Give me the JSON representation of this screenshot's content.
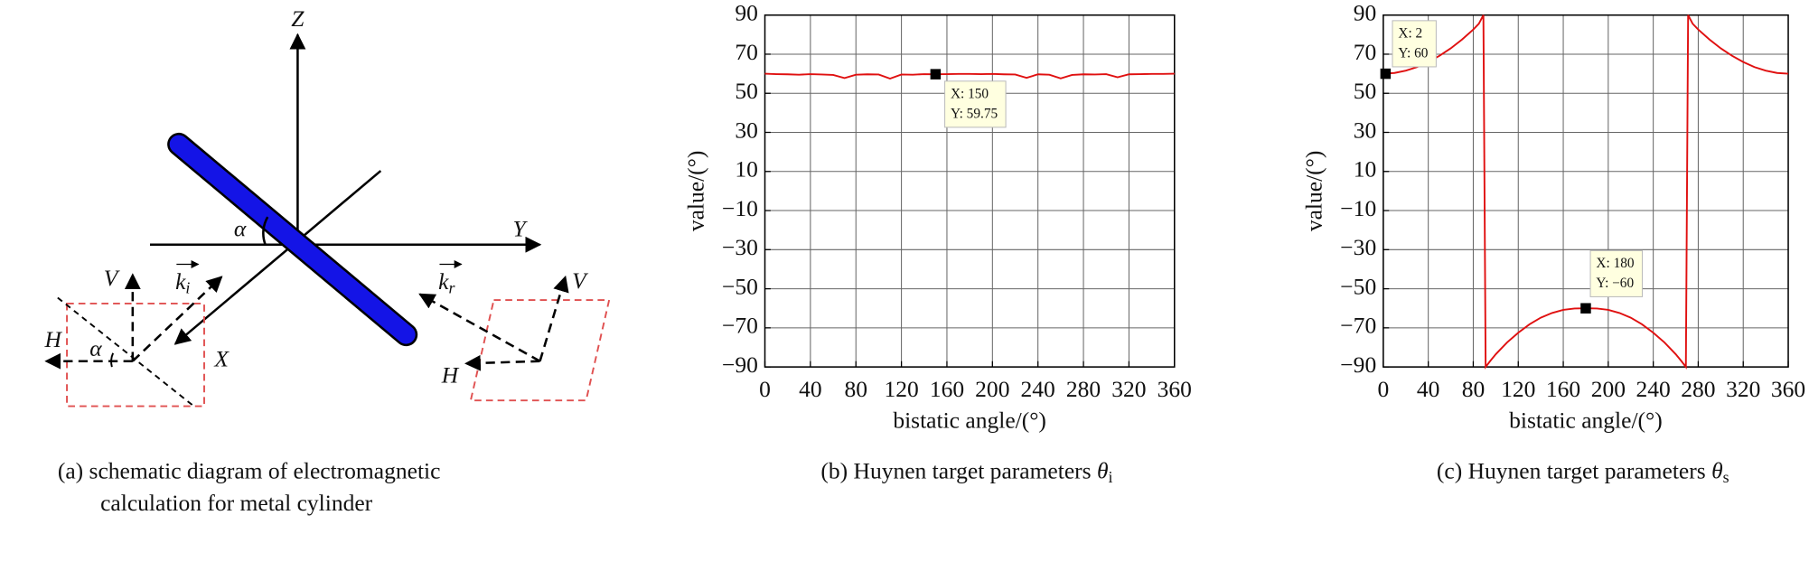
{
  "diagram": {
    "axis_z": "Z",
    "axis_y": "Y",
    "axis_x": "X",
    "alpha_center": "α",
    "incident": {
      "v": "V",
      "h": "H",
      "alpha": "α",
      "k": "k",
      "k_sub": "i"
    },
    "reflected": {
      "v": "V",
      "h": "H",
      "k": "k",
      "k_sub": "r"
    },
    "caption": [
      "(a) schematic diagram of electromagnetic",
      "calculation for metal cylinder"
    ]
  },
  "chart_data": [
    {
      "type": "line",
      "caption": {
        "text": "(b) Huynen target parameters ",
        "symbol": "θ",
        "subscript": "i"
      },
      "xlabel": "bistatic angle/(°)",
      "ylabel": "value/(°)",
      "x": [
        0,
        10,
        20,
        30,
        40,
        50,
        60,
        70,
        80,
        90,
        100,
        110,
        120,
        130,
        140,
        150,
        160,
        170,
        180,
        190,
        200,
        210,
        220,
        230,
        240,
        250,
        260,
        270,
        280,
        290,
        300,
        310,
        320,
        330,
        340,
        350,
        360
      ],
      "series": [
        {
          "color": "#e01010",
          "values": [
            60,
            59.8,
            59.7,
            59.5,
            59.8,
            59.6,
            59.4,
            57.8,
            59.5,
            59.7,
            59.6,
            57.5,
            59.6,
            59.5,
            59.8,
            59.75,
            59.8,
            59.9,
            59.9,
            59.8,
            59.9,
            59.7,
            59.6,
            57.9,
            59.7,
            59.5,
            57.6,
            59.4,
            59.7,
            59.6,
            59.8,
            58.2,
            59.7,
            59.8,
            59.9,
            59.9,
            60
          ]
        }
      ],
      "xlim": [
        0,
        360
      ],
      "xticks": [
        0,
        40,
        80,
        120,
        160,
        200,
        240,
        280,
        320,
        360
      ],
      "ylim": [
        -90,
        90
      ],
      "yticks": [
        90,
        70,
        50,
        30,
        10,
        {
          "value": -10,
          "label": "−10"
        },
        {
          "value": -30,
          "label": "−30"
        },
        {
          "value": -50,
          "label": "−50"
        },
        {
          "value": -70,
          "label": "−70"
        },
        {
          "value": -90,
          "label": "−90"
        }
      ],
      "grid": true,
      "datatips": [
        {
          "x": 150,
          "y": 59.75,
          "x_label": "X: 150",
          "y_label": "Y: 59.75"
        }
      ]
    },
    {
      "type": "line",
      "caption": {
        "text": "(c) Huynen target parameters  ",
        "symbol": "θ",
        "subscript": "s"
      },
      "xlabel": "bistatic angle/(°)",
      "ylabel": "value/(°)",
      "x": [
        0,
        10,
        20,
        30,
        40,
        50,
        60,
        70,
        80,
        85,
        89,
        91,
        95,
        100,
        110,
        120,
        130,
        140,
        150,
        160,
        170,
        180,
        190,
        200,
        210,
        220,
        230,
        240,
        250,
        260,
        265,
        269,
        271,
        275,
        280,
        290,
        300,
        310,
        320,
        330,
        340,
        350,
        360
      ],
      "series": [
        {
          "color": "#e01010",
          "values": [
            60,
            60.4,
            61.6,
            63.4,
            66,
            69.2,
            73,
            77.5,
            82.6,
            85.6,
            90,
            -90,
            -87,
            -83.5,
            -77.5,
            -72.5,
            -68.2,
            -64.8,
            -62.4,
            -60.8,
            -60.1,
            -60,
            -60.1,
            -60.8,
            -62.4,
            -64.8,
            -68.2,
            -72.5,
            -77.5,
            -83.5,
            -87,
            -90,
            90,
            85.6,
            82.6,
            77.5,
            73,
            69.2,
            66,
            63.4,
            61.6,
            60.4,
            60
          ]
        }
      ],
      "xlim": [
        0,
        360
      ],
      "xticks": [
        0,
        40,
        80,
        120,
        160,
        200,
        240,
        280,
        320,
        360
      ],
      "ylim": [
        -90,
        90
      ],
      "yticks": [
        90,
        70,
        50,
        30,
        10,
        {
          "value": -10,
          "label": "−10"
        },
        {
          "value": -30,
          "label": "−30"
        },
        {
          "value": -50,
          "label": "−50"
        },
        {
          "value": -70,
          "label": "−70"
        },
        {
          "value": -90,
          "label": "−90"
        }
      ],
      "grid": true,
      "datatips": [
        {
          "x": 2,
          "y": 60,
          "x_label": "X: 2",
          "y_label": "Y: 60"
        },
        {
          "x": 180,
          "y": -60,
          "x_label": "X: 180",
          "y_label": "Y: −60"
        }
      ]
    }
  ]
}
